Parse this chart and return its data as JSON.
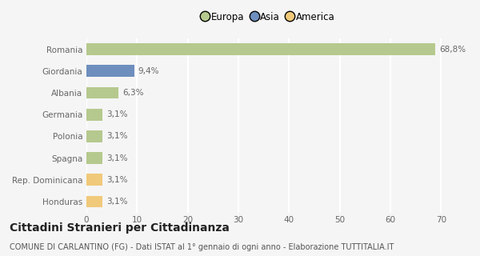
{
  "categories": [
    "Romania",
    "Giordania",
    "Albania",
    "Germania",
    "Polonia",
    "Spagna",
    "Rep. Dominicana",
    "Honduras"
  ],
  "values": [
    68.8,
    9.4,
    6.3,
    3.1,
    3.1,
    3.1,
    3.1,
    3.1
  ],
  "labels": [
    "68,8%",
    "9,4%",
    "6,3%",
    "3,1%",
    "3,1%",
    "3,1%",
    "3,1%",
    "3,1%"
  ],
  "colors": [
    "#b5c98e",
    "#6e8fbe",
    "#b5c98e",
    "#b5c98e",
    "#b5c98e",
    "#b5c98e",
    "#f0c97a",
    "#f0c97a"
  ],
  "legend_labels": [
    "Europa",
    "Asia",
    "America"
  ],
  "legend_colors": [
    "#b5c98e",
    "#6e8fbe",
    "#f0c97a"
  ],
  "xlim": [
    0,
    72
  ],
  "xticks": [
    0,
    10,
    20,
    30,
    40,
    50,
    60,
    70
  ],
  "title": "Cittadini Stranieri per Cittadinanza",
  "subtitle": "COMUNE DI CARLANTINO (FG) - Dati ISTAT al 1° gennaio di ogni anno - Elaborazione TUTTITALIA.IT",
  "bg_color": "#f5f5f5",
  "grid_color": "#ffffff",
  "bar_height": 0.55,
  "label_fontsize": 7.5,
  "tick_label_fontsize": 7.5,
  "title_fontsize": 10,
  "subtitle_fontsize": 7
}
